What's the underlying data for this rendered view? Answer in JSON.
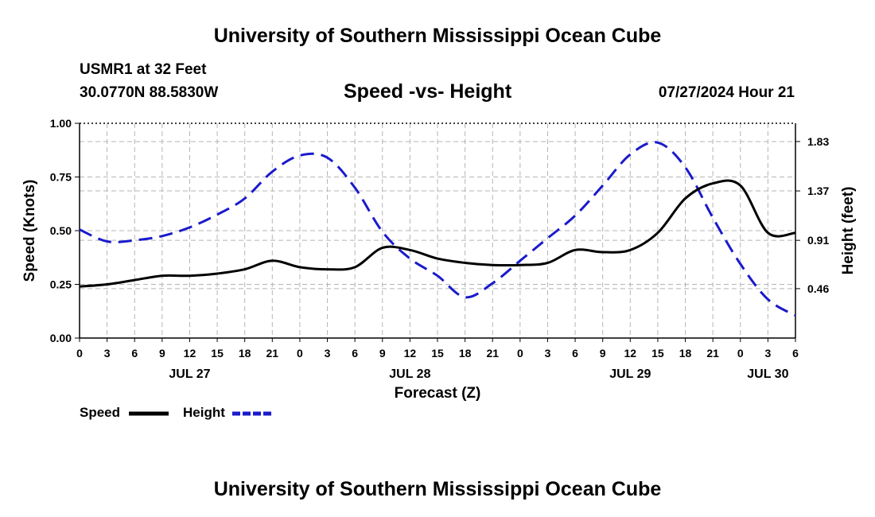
{
  "header": {
    "title": "University of Southern Mississippi Ocean Cube",
    "station": "USMR1 at 32 Feet",
    "coordinates": "30.0770N  88.5830W",
    "subtitle": "Speed -vs- Height",
    "datetime": "07/27/2024 Hour 21"
  },
  "footer": {
    "title": "University of Southern Mississippi Ocean Cube"
  },
  "chart_data": {
    "type": "line",
    "title": "Speed -vs- Height",
    "xlabel": "Forecast (Z)",
    "ylabel_left": "Speed (Knots)",
    "ylabel_right": "Height (feet)",
    "x_unit": "hours since JUL 27 00Z",
    "xlim": [
      0,
      78
    ],
    "x_ticks": [
      0,
      3,
      6,
      9,
      12,
      15,
      18,
      21,
      24,
      27,
      30,
      33,
      36,
      39,
      42,
      45,
      48,
      51,
      54,
      57,
      60,
      63,
      66,
      69,
      72,
      75,
      78
    ],
    "x_tick_labels": [
      "0",
      "3",
      "6",
      "9",
      "12",
      "15",
      "18",
      "21",
      "0",
      "3",
      "6",
      "9",
      "12",
      "15",
      "18",
      "21",
      "0",
      "3",
      "6",
      "9",
      "12",
      "15",
      "18",
      "21",
      "0",
      "3",
      "6"
    ],
    "date_labels": [
      {
        "label": "JUL 27",
        "x": 12
      },
      {
        "label": "JUL 28",
        "x": 36
      },
      {
        "label": "JUL 29",
        "x": 60
      },
      {
        "label": "JUL 30",
        "x": 75
      }
    ],
    "ylim_left": [
      0,
      1
    ],
    "y_ticks_left": [
      0,
      0.25,
      0.5,
      0.75,
      1.0
    ],
    "y_tick_labels_left": [
      "0.00",
      "0.25",
      "0.50",
      "0.75",
      "1.00"
    ],
    "ylim_right": [
      0,
      2.0
    ],
    "y_ticks_right": [
      0.46,
      0.91,
      1.37,
      1.83
    ],
    "y_tick_labels_right": [
      "0.46",
      "0.91",
      "1.37",
      "1.83"
    ],
    "grid": true,
    "legend_position": "bottom-left",
    "series": [
      {
        "name": "Speed",
        "axis": "left",
        "color": "#000000",
        "style": "solid",
        "x": [
          0,
          3,
          6,
          9,
          12,
          15,
          18,
          21,
          24,
          27,
          30,
          33,
          36,
          39,
          42,
          45,
          48,
          51,
          54,
          57,
          60,
          63,
          66,
          69,
          72,
          75,
          78
        ],
        "values": [
          0.24,
          0.25,
          0.27,
          0.29,
          0.29,
          0.3,
          0.32,
          0.36,
          0.33,
          0.32,
          0.33,
          0.42,
          0.41,
          0.37,
          0.35,
          0.34,
          0.34,
          0.35,
          0.41,
          0.4,
          0.41,
          0.49,
          0.65,
          0.72,
          0.71,
          0.49,
          0.49
        ]
      },
      {
        "name": "Height",
        "axis": "right",
        "color": "#1a1acc",
        "style": "dashed",
        "x": [
          0,
          3,
          6,
          9,
          12,
          15,
          18,
          21,
          24,
          27,
          30,
          33,
          36,
          39,
          42,
          45,
          48,
          51,
          54,
          57,
          60,
          63,
          66,
          69,
          72,
          75,
          78
        ],
        "values": [
          1.01,
          0.9,
          0.91,
          0.95,
          1.03,
          1.15,
          1.3,
          1.55,
          1.7,
          1.68,
          1.4,
          0.99,
          0.74,
          0.58,
          0.38,
          0.51,
          0.72,
          0.93,
          1.14,
          1.42,
          1.71,
          1.82,
          1.59,
          1.12,
          0.69,
          0.36,
          0.21
        ]
      }
    ]
  }
}
